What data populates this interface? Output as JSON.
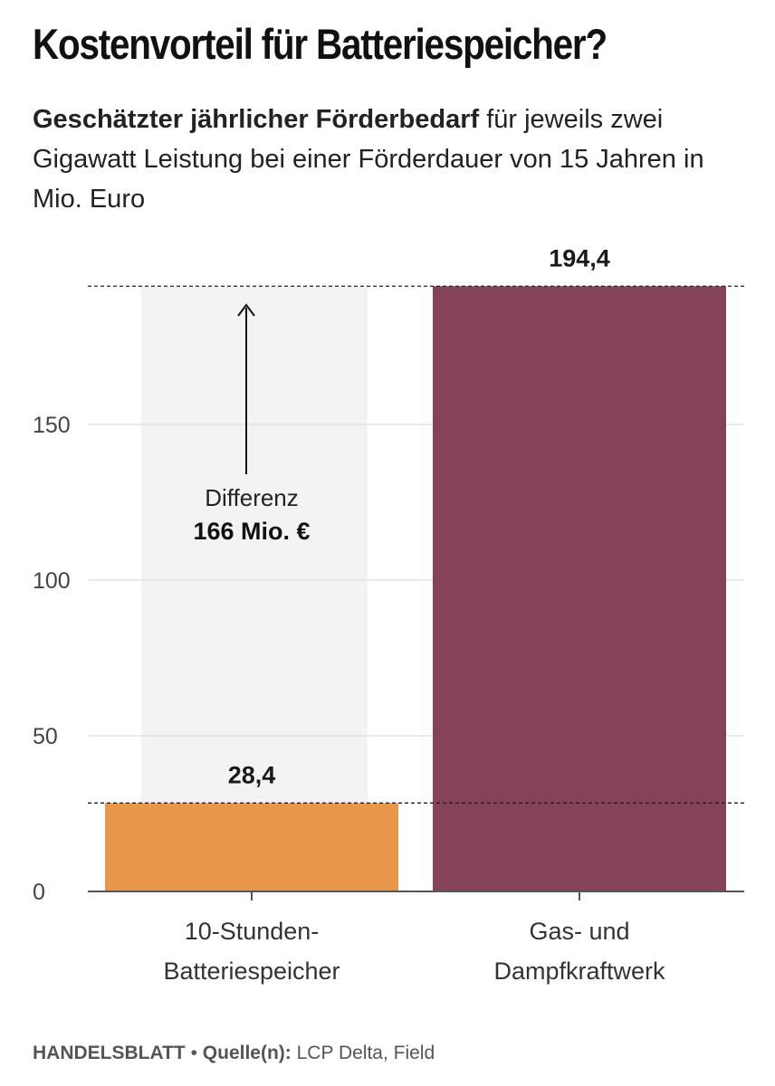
{
  "header": {
    "title": "Kostenvorteil für Batteriespeicher?",
    "subtitle_bold": "Geschätzter jährlicher Förderbedarf",
    "subtitle_rest": " für jeweils zwei Gigawatt Leistung bei einer Förderdauer von 15 Jahren in Mio. Euro"
  },
  "chart_data": {
    "type": "bar",
    "categories": [
      [
        "10-Stunden-",
        "Batteriespeicher"
      ],
      [
        "Gas- und",
        "Dampfkraftwerk"
      ]
    ],
    "values": [
      28.4,
      194.4
    ],
    "value_labels": [
      "28,4",
      "194,4"
    ],
    "yticks": [
      0,
      50,
      100,
      150
    ],
    "ylim": [
      0,
      194.4
    ],
    "grid": true,
    "annotation": {
      "label": "Differenz",
      "value_text": "166 Mio. €",
      "difference": 166
    },
    "colors": {
      "bars": [
        "#e8974a",
        "#844356"
      ],
      "difference_band": "#f3f3f3",
      "grid": "#dddddd",
      "axis": "#555555"
    }
  },
  "footer": {
    "publisher": "HANDELSBLATT",
    "separator": " • ",
    "source_label": "Quelle(n):",
    "source_value": " LCP Delta, Field"
  }
}
